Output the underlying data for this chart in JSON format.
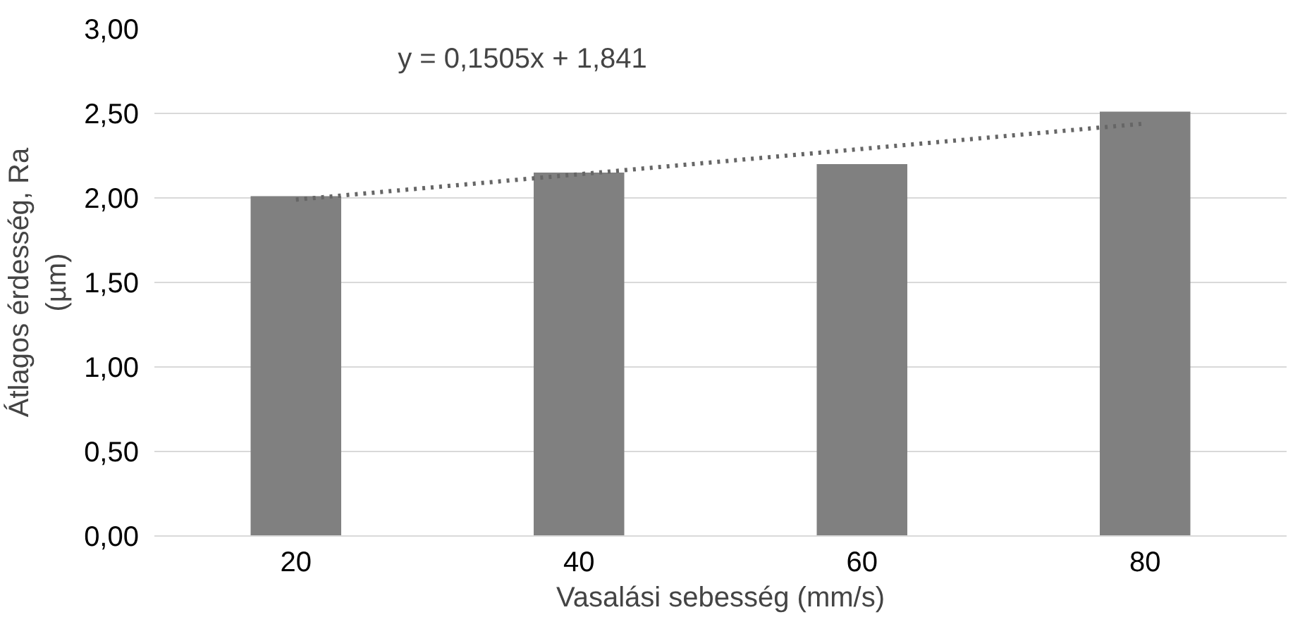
{
  "chart_data": {
    "type": "bar",
    "xlabel": "Vasalási sebesség (mm/s)",
    "ylabel": "Átlagos érdesség, Ra\n(µm)",
    "categories": [
      "20",
      "40",
      "60",
      "80"
    ],
    "series": [
      {
        "color": "#808080",
        "values": [
          2.01,
          2.15,
          2.2,
          2.51
        ]
      },
      {
        "type": "line",
        "color": "#666666",
        "line_style": "dotted",
        "x": [
          "20",
          "40",
          "60",
          "80"
        ],
        "values": [
          1.99,
          2.14,
          2.29,
          2.44
        ]
      }
    ],
    "annotations": [
      "y = 0,1505x + 1,841"
    ],
    "ylim": [
      0,
      3
    ],
    "yticks": [
      {
        "value": 0,
        "label": "0,00"
      },
      {
        "value": 0.5,
        "label": "0,50"
      },
      {
        "value": 1,
        "label": "1,00"
      },
      {
        "value": 1.5,
        "label": "1,50"
      },
      {
        "value": 2,
        "label": "2,00"
      },
      {
        "value": 2.5,
        "label": "2,50"
      },
      {
        "value": 3,
        "label": "3,00"
      }
    ],
    "grid": "y"
  }
}
